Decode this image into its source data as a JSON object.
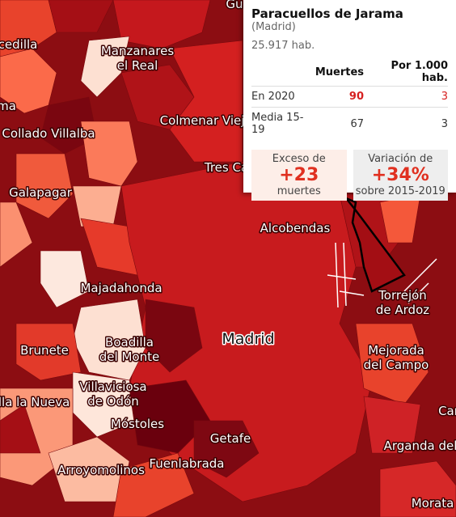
{
  "map_labels": [
    {
      "lines": [
        "Gu"
      ]
    },
    {
      "lines": [
        "cedilla"
      ]
    },
    {
      "lines": [
        "ma"
      ]
    },
    {
      "lines": [
        "Manzanares",
        "el Real"
      ]
    },
    {
      "lines": [
        "Colmenar Viej"
      ]
    },
    {
      "lines": [
        "Collado Villalba"
      ]
    },
    {
      "lines": [
        "Tres Ca"
      ]
    },
    {
      "lines": [
        "Galapagar"
      ]
    },
    {
      "lines": [
        "Alcobendas"
      ]
    },
    {
      "lines": [
        "Majadahonda"
      ]
    },
    {
      "lines": [
        "Torrejón",
        "de Ardoz"
      ]
    },
    {
      "lines": [
        "Madrid"
      ]
    },
    {
      "lines": [
        "Boadilla",
        "del Monte"
      ]
    },
    {
      "lines": [
        "Brunete"
      ]
    },
    {
      "lines": [
        "Mejorada",
        "del Campo"
      ]
    },
    {
      "lines": [
        "Villaviciosa",
        "de Odón"
      ]
    },
    {
      "lines": [
        "illa la Nueva"
      ]
    },
    {
      "lines": [
        "Móstoles"
      ]
    },
    {
      "lines": [
        "Car"
      ]
    },
    {
      "lines": [
        "Getafe"
      ]
    },
    {
      "lines": [
        "Arganda del"
      ]
    },
    {
      "lines": [
        "Fuenlabrada"
      ]
    },
    {
      "lines": [
        "Arroyomolinos"
      ]
    },
    {
      "lines": [
        "Morata"
      ]
    }
  ],
  "tooltip": {
    "title": "Paracuellos de Jarama",
    "province": "(Madrid)",
    "population": "25.917 hab.",
    "table": {
      "header": [
        "Muertes",
        "Por 1.000 hab."
      ],
      "rows": [
        [
          "En 2020",
          90,
          3
        ],
        [
          "Media 15-19",
          67,
          3
        ]
      ]
    },
    "boxes": [
      {
        "top": "Exceso de",
        "value": "+23",
        "bottom": "muertes"
      },
      {
        "top": "Variación de",
        "value": "+34%",
        "bottom": "sobre 2015-2019"
      }
    ]
  }
}
